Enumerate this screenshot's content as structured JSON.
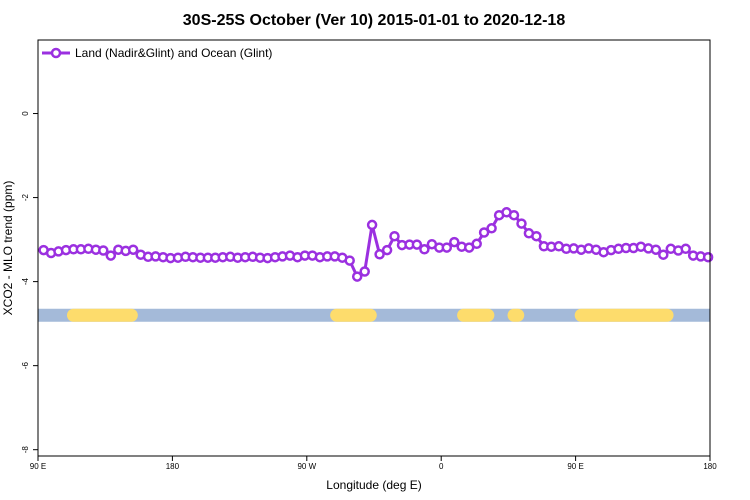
{
  "chart_data": {
    "type": "line",
    "title": "30S-25S October (Ver 10)   2015-01-01 to 2020-12-18",
    "xlabel": "Longitude (deg E)",
    "ylabel": "XCO2 - MLO trend (ppm)",
    "xlim": [
      90,
      450
    ],
    "ylim": [
      -8.15,
      1.75
    ],
    "x_ticks": [
      {
        "value": 90,
        "label": "90 E"
      },
      {
        "value": 162,
        "label": "180"
      },
      {
        "value": 234,
        "label": "90 W"
      },
      {
        "value": 306,
        "label": "0"
      },
      {
        "value": 378,
        "label": "90 E"
      },
      {
        "value": 450,
        "label": "180"
      }
    ],
    "y_ticks": [
      {
        "value": 0,
        "label": "0"
      },
      {
        "value": -2,
        "label": "-2"
      },
      {
        "value": -4,
        "label": "-4"
      },
      {
        "value": -6,
        "label": "-6"
      },
      {
        "value": -8,
        "label": "-8"
      }
    ],
    "grid": false,
    "legend_position": "top-left",
    "series": [
      {
        "name": "Land (Nadir&Glint) and Ocean (Glint)",
        "color": "#9b30e0",
        "x": [
          93,
          97,
          101,
          105,
          109,
          113,
          117,
          121,
          125,
          129,
          133,
          137,
          141,
          145,
          149,
          153,
          157,
          161,
          165,
          169,
          173,
          177,
          181,
          185,
          189,
          193,
          197,
          201,
          205,
          209,
          213,
          217,
          221,
          225,
          229,
          233,
          237,
          241,
          245,
          249,
          253,
          257,
          261,
          265,
          269,
          273,
          277,
          281,
          285,
          289,
          293,
          297,
          301,
          305,
          309,
          313,
          317,
          321,
          325,
          329,
          333,
          337,
          341,
          345,
          349,
          353,
          357,
          361,
          365,
          369,
          373,
          377,
          381,
          385,
          389,
          393,
          397,
          401,
          405,
          409,
          413,
          417,
          421,
          425,
          429,
          433,
          437,
          441,
          445,
          449
        ],
        "values": [
          -3.25,
          -3.32,
          -3.28,
          -3.25,
          -3.23,
          -3.23,
          -3.22,
          -3.24,
          -3.26,
          -3.38,
          -3.24,
          -3.27,
          -3.24,
          -3.36,
          -3.41,
          -3.4,
          -3.42,
          -3.44,
          -3.43,
          -3.41,
          -3.42,
          -3.43,
          -3.43,
          -3.43,
          -3.42,
          -3.41,
          -3.43,
          -3.42,
          -3.41,
          -3.43,
          -3.44,
          -3.42,
          -3.4,
          -3.38,
          -3.42,
          -3.38,
          -3.38,
          -3.42,
          -3.4,
          -3.4,
          -3.43,
          -3.5,
          -3.88,
          -3.76,
          -2.65,
          -3.35,
          -3.25,
          -2.92,
          -3.13,
          -3.12,
          -3.12,
          -3.23,
          -3.11,
          -3.19,
          -3.19,
          -3.06,
          -3.17,
          -3.19,
          -3.1,
          -2.83,
          -2.73,
          -2.42,
          -2.35,
          -2.42,
          -2.62,
          -2.85,
          -2.92,
          -3.16,
          -3.17,
          -3.16,
          -3.22,
          -3.21,
          -3.24,
          -3.21,
          -3.24,
          -3.3,
          -3.25,
          -3.22,
          -3.2,
          -3.2,
          -3.17,
          -3.21,
          -3.24,
          -3.36,
          -3.22,
          -3.26,
          -3.22,
          -3.38,
          -3.4,
          -3.42
        ]
      }
    ],
    "surface_band": {
      "y": -4.8,
      "ocean_color": "#a4bad9",
      "land_color": "#fddc6c",
      "land_segments": [
        [
          109,
          140
        ],
        [
          250,
          268
        ],
        [
          318,
          331
        ],
        [
          345,
          347
        ],
        [
          381,
          427
        ]
      ]
    }
  }
}
